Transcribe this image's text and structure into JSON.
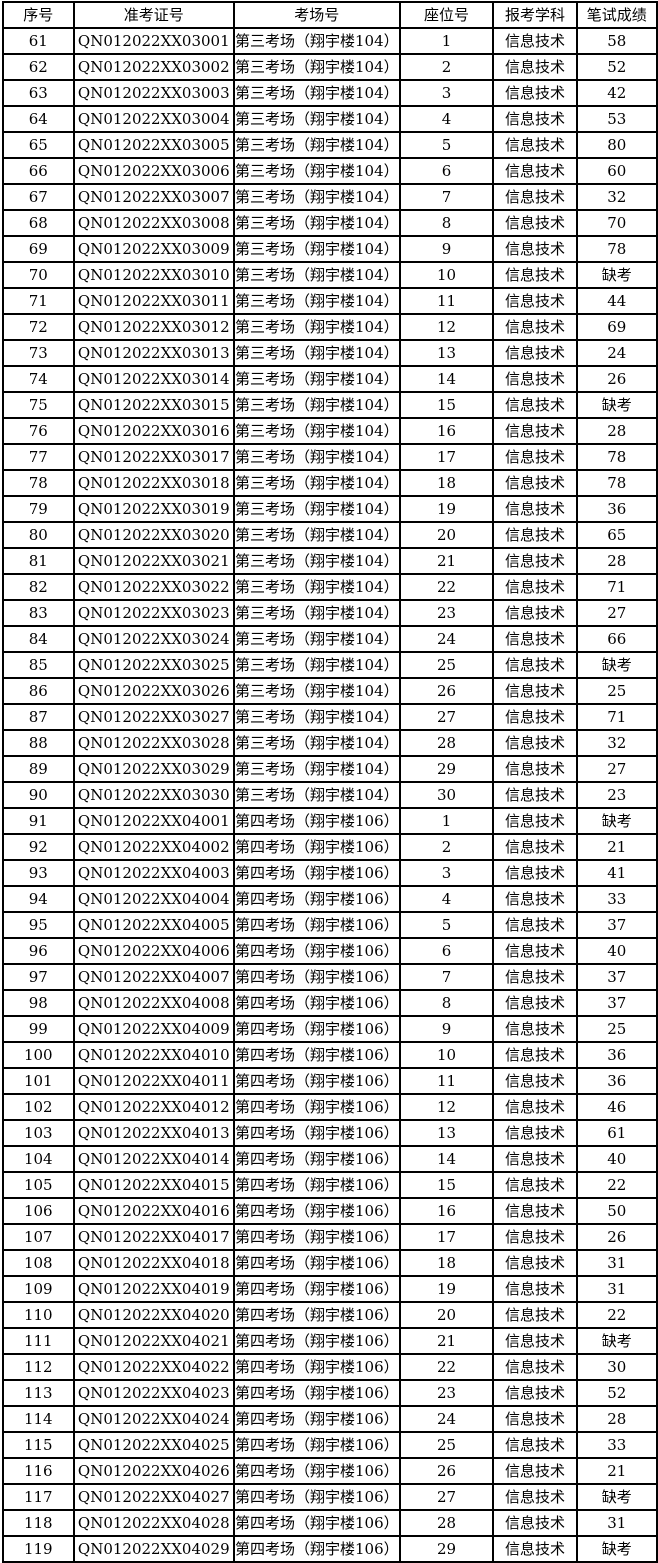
{
  "table": {
    "columns": [
      "序号",
      "准考证号",
      "考场号",
      "座位号",
      "报考学科",
      "笔试成绩"
    ],
    "absent_label": "缺考",
    "colors": {
      "border": "#000000",
      "text": "#000000",
      "background": "#ffffff"
    },
    "rows": [
      [
        "61",
        "QN012022XX03001",
        "第三考场（翔宇楼104）",
        "1",
        "信息技术",
        "58"
      ],
      [
        "62",
        "QN012022XX03002",
        "第三考场（翔宇楼104）",
        "2",
        "信息技术",
        "52"
      ],
      [
        "63",
        "QN012022XX03003",
        "第三考场（翔宇楼104）",
        "3",
        "信息技术",
        "42"
      ],
      [
        "64",
        "QN012022XX03004",
        "第三考场（翔宇楼104）",
        "4",
        "信息技术",
        "53"
      ],
      [
        "65",
        "QN012022XX03005",
        "第三考场（翔宇楼104）",
        "5",
        "信息技术",
        "80"
      ],
      [
        "66",
        "QN012022XX03006",
        "第三考场（翔宇楼104）",
        "6",
        "信息技术",
        "60"
      ],
      [
        "67",
        "QN012022XX03007",
        "第三考场（翔宇楼104）",
        "7",
        "信息技术",
        "32"
      ],
      [
        "68",
        "QN012022XX03008",
        "第三考场（翔宇楼104）",
        "8",
        "信息技术",
        "70"
      ],
      [
        "69",
        "QN012022XX03009",
        "第三考场（翔宇楼104）",
        "9",
        "信息技术",
        "78"
      ],
      [
        "70",
        "QN012022XX03010",
        "第三考场（翔宇楼104）",
        "10",
        "信息技术",
        "缺考"
      ],
      [
        "71",
        "QN012022XX03011",
        "第三考场（翔宇楼104）",
        "11",
        "信息技术",
        "44"
      ],
      [
        "72",
        "QN012022XX03012",
        "第三考场（翔宇楼104）",
        "12",
        "信息技术",
        "69"
      ],
      [
        "73",
        "QN012022XX03013",
        "第三考场（翔宇楼104）",
        "13",
        "信息技术",
        "24"
      ],
      [
        "74",
        "QN012022XX03014",
        "第三考场（翔宇楼104）",
        "14",
        "信息技术",
        "26"
      ],
      [
        "75",
        "QN012022XX03015",
        "第三考场（翔宇楼104）",
        "15",
        "信息技术",
        "缺考"
      ],
      [
        "76",
        "QN012022XX03016",
        "第三考场（翔宇楼104）",
        "16",
        "信息技术",
        "28"
      ],
      [
        "77",
        "QN012022XX03017",
        "第三考场（翔宇楼104）",
        "17",
        "信息技术",
        "78"
      ],
      [
        "78",
        "QN012022XX03018",
        "第三考场（翔宇楼104）",
        "18",
        "信息技术",
        "78"
      ],
      [
        "79",
        "QN012022XX03019",
        "第三考场（翔宇楼104）",
        "19",
        "信息技术",
        "36"
      ],
      [
        "80",
        "QN012022XX03020",
        "第三考场（翔宇楼104）",
        "20",
        "信息技术",
        "65"
      ],
      [
        "81",
        "QN012022XX03021",
        "第三考场（翔宇楼104）",
        "21",
        "信息技术",
        "28"
      ],
      [
        "82",
        "QN012022XX03022",
        "第三考场（翔宇楼104）",
        "22",
        "信息技术",
        "71"
      ],
      [
        "83",
        "QN012022XX03023",
        "第三考场（翔宇楼104）",
        "23",
        "信息技术",
        "27"
      ],
      [
        "84",
        "QN012022XX03024",
        "第三考场（翔宇楼104）",
        "24",
        "信息技术",
        "66"
      ],
      [
        "85",
        "QN012022XX03025",
        "第三考场（翔宇楼104）",
        "25",
        "信息技术",
        "缺考"
      ],
      [
        "86",
        "QN012022XX03026",
        "第三考场（翔宇楼104）",
        "26",
        "信息技术",
        "25"
      ],
      [
        "87",
        "QN012022XX03027",
        "第三考场（翔宇楼104）",
        "27",
        "信息技术",
        "71"
      ],
      [
        "88",
        "QN012022XX03028",
        "第三考场（翔宇楼104）",
        "28",
        "信息技术",
        "32"
      ],
      [
        "89",
        "QN012022XX03029",
        "第三考场（翔宇楼104）",
        "29",
        "信息技术",
        "27"
      ],
      [
        "90",
        "QN012022XX03030",
        "第三考场（翔宇楼104）",
        "30",
        "信息技术",
        "23"
      ],
      [
        "91",
        "QN012022XX04001",
        "第四考场（翔宇楼106）",
        "1",
        "信息技术",
        "缺考"
      ],
      [
        "92",
        "QN012022XX04002",
        "第四考场（翔宇楼106）",
        "2",
        "信息技术",
        "21"
      ],
      [
        "93",
        "QN012022XX04003",
        "第四考场（翔宇楼106）",
        "3",
        "信息技术",
        "41"
      ],
      [
        "94",
        "QN012022XX04004",
        "第四考场（翔宇楼106）",
        "4",
        "信息技术",
        "33"
      ],
      [
        "95",
        "QN012022XX04005",
        "第四考场（翔宇楼106）",
        "5",
        "信息技术",
        "37"
      ],
      [
        "96",
        "QN012022XX04006",
        "第四考场（翔宇楼106）",
        "6",
        "信息技术",
        "40"
      ],
      [
        "97",
        "QN012022XX04007",
        "第四考场（翔宇楼106）",
        "7",
        "信息技术",
        "37"
      ],
      [
        "98",
        "QN012022XX04008",
        "第四考场（翔宇楼106）",
        "8",
        "信息技术",
        "37"
      ],
      [
        "99",
        "QN012022XX04009",
        "第四考场（翔宇楼106）",
        "9",
        "信息技术",
        "25"
      ],
      [
        "100",
        "QN012022XX04010",
        "第四考场（翔宇楼106）",
        "10",
        "信息技术",
        "36"
      ],
      [
        "101",
        "QN012022XX04011",
        "第四考场（翔宇楼106）",
        "11",
        "信息技术",
        "36"
      ],
      [
        "102",
        "QN012022XX04012",
        "第四考场（翔宇楼106）",
        "12",
        "信息技术",
        "46"
      ],
      [
        "103",
        "QN012022XX04013",
        "第四考场（翔宇楼106）",
        "13",
        "信息技术",
        "61"
      ],
      [
        "104",
        "QN012022XX04014",
        "第四考场（翔宇楼106）",
        "14",
        "信息技术",
        "40"
      ],
      [
        "105",
        "QN012022XX04015",
        "第四考场（翔宇楼106）",
        "15",
        "信息技术",
        "22"
      ],
      [
        "106",
        "QN012022XX04016",
        "第四考场（翔宇楼106）",
        "16",
        "信息技术",
        "50"
      ],
      [
        "107",
        "QN012022XX04017",
        "第四考场（翔宇楼106）",
        "17",
        "信息技术",
        "26"
      ],
      [
        "108",
        "QN012022XX04018",
        "第四考场（翔宇楼106）",
        "18",
        "信息技术",
        "31"
      ],
      [
        "109",
        "QN012022XX04019",
        "第四考场（翔宇楼106）",
        "19",
        "信息技术",
        "31"
      ],
      [
        "110",
        "QN012022XX04020",
        "第四考场（翔宇楼106）",
        "20",
        "信息技术",
        "22"
      ],
      [
        "111",
        "QN012022XX04021",
        "第四考场（翔宇楼106）",
        "21",
        "信息技术",
        "缺考"
      ],
      [
        "112",
        "QN012022XX04022",
        "第四考场（翔宇楼106）",
        "22",
        "信息技术",
        "30"
      ],
      [
        "113",
        "QN012022XX04023",
        "第四考场（翔宇楼106）",
        "23",
        "信息技术",
        "52"
      ],
      [
        "114",
        "QN012022XX04024",
        "第四考场（翔宇楼106）",
        "24",
        "信息技术",
        "28"
      ],
      [
        "115",
        "QN012022XX04025",
        "第四考场（翔宇楼106）",
        "25",
        "信息技术",
        "33"
      ],
      [
        "116",
        "QN012022XX04026",
        "第四考场（翔宇楼106）",
        "26",
        "信息技术",
        "21"
      ],
      [
        "117",
        "QN012022XX04027",
        "第四考场（翔宇楼106）",
        "27",
        "信息技术",
        "缺考"
      ],
      [
        "118",
        "QN012022XX04028",
        "第四考场（翔宇楼106）",
        "28",
        "信息技术",
        "31"
      ],
      [
        "119",
        "QN012022XX04029",
        "第四考场（翔宇楼106）",
        "29",
        "信息技术",
        "缺考"
      ]
    ]
  }
}
